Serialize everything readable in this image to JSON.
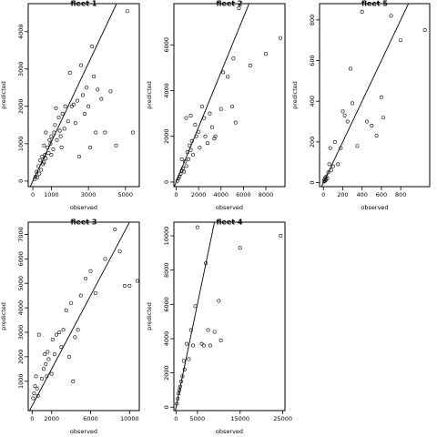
{
  "chart_data": [
    {
      "type": "scatter",
      "title": "fleet 1",
      "xlabel": "observed",
      "ylabel": "predicted",
      "xlim": [
        -250,
        5750
      ],
      "ylim": [
        -150,
        4750
      ],
      "xticks": [
        0,
        1000,
        3000,
        5000
      ],
      "yticks": [
        0,
        1000,
        2000,
        3000,
        4000
      ],
      "reference_line": {
        "slope": 1.05,
        "intercept": 0
      },
      "points": [
        [
          100,
          50
        ],
        [
          150,
          120
        ],
        [
          200,
          250
        ],
        [
          250,
          100
        ],
        [
          300,
          400
        ],
        [
          350,
          200
        ],
        [
          400,
          550
        ],
        [
          450,
          300
        ],
        [
          500,
          650
        ],
        [
          550,
          450
        ],
        [
          600,
          500
        ],
        [
          650,
          700
        ],
        [
          700,
          600
        ],
        [
          800,
          900
        ],
        [
          850,
          750
        ],
        [
          900,
          1100
        ],
        [
          950,
          1000
        ],
        [
          1000,
          1200
        ],
        [
          1100,
          850
        ],
        [
          1150,
          1300
        ],
        [
          1200,
          1500
        ],
        [
          1300,
          1100
        ],
        [
          1400,
          1700
        ],
        [
          1450,
          1350
        ],
        [
          1500,
          1200
        ],
        [
          1550,
          900
        ],
        [
          1600,
          1800
        ],
        [
          1700,
          1400
        ],
        [
          1750,
          2000
        ],
        [
          1900,
          1600
        ],
        [
          2000,
          2900
        ],
        [
          2100,
          2000
        ],
        [
          2200,
          2050
        ],
        [
          2300,
          1550
        ],
        [
          2400,
          2150
        ],
        [
          2500,
          650
        ],
        [
          2600,
          3100
        ],
        [
          2700,
          2300
        ],
        [
          2800,
          1800
        ],
        [
          2900,
          2500
        ],
        [
          3000,
          2000
        ],
        [
          3100,
          900
        ],
        [
          3200,
          3600
        ],
        [
          3300,
          2800
        ],
        [
          3400,
          1300
        ],
        [
          3500,
          2450
        ],
        [
          3700,
          2200
        ],
        [
          3900,
          1300
        ],
        [
          4200,
          2400
        ],
        [
          4500,
          950
        ],
        [
          5100,
          4550
        ],
        [
          5400,
          1300
        ],
        [
          700,
          1300
        ],
        [
          1250,
          1950
        ],
        [
          600,
          950
        ],
        [
          1000,
          700
        ]
      ]
    },
    {
      "type": "scatter",
      "title": "fleet 2",
      "xlabel": "observed",
      "ylabel": "predicted",
      "xlim": [
        -200,
        9700
      ],
      "ylim": [
        -200,
        7800
      ],
      "xticks": [
        0,
        2000,
        4000,
        6000,
        8000
      ],
      "yticks": [
        0,
        2000,
        4000,
        6000
      ],
      "reference_line": {
        "slope": 1.2,
        "intercept": 0
      },
      "points": [
        [
          100,
          50
        ],
        [
          200,
          150
        ],
        [
          300,
          250
        ],
        [
          400,
          350
        ],
        [
          500,
          500
        ],
        [
          600,
          600
        ],
        [
          700,
          450
        ],
        [
          800,
          900
        ],
        [
          900,
          700
        ],
        [
          1000,
          1300
        ],
        [
          1100,
          1000
        ],
        [
          1200,
          1600
        ],
        [
          1300,
          1400
        ],
        [
          1400,
          1800
        ],
        [
          1500,
          1200
        ],
        [
          1700,
          2500
        ],
        [
          1800,
          2000
        ],
        [
          2000,
          2200
        ],
        [
          2100,
          1500
        ],
        [
          2300,
          3300
        ],
        [
          2500,
          2800
        ],
        [
          2600,
          2000
        ],
        [
          2800,
          1700
        ],
        [
          3000,
          3000
        ],
        [
          3200,
          2400
        ],
        [
          3400,
          1900
        ],
        [
          3500,
          2000
        ],
        [
          4000,
          3200
        ],
        [
          4200,
          4800
        ],
        [
          4600,
          4600
        ],
        [
          5000,
          3300
        ],
        [
          5100,
          5400
        ],
        [
          5300,
          2600
        ],
        [
          5600,
          7600
        ],
        [
          6600,
          5100
        ],
        [
          8000,
          5600
        ],
        [
          9300,
          6300
        ],
        [
          900,
          2800
        ],
        [
          1300,
          2900
        ],
        [
          500,
          1000
        ]
      ]
    },
    {
      "type": "scatter",
      "title": "fleet 5",
      "xlabel": "observed",
      "ylabel": "predicted",
      "xlim": [
        -40,
        1100
      ],
      "ylim": [
        -20,
        880
      ],
      "xticks": [
        0,
        200,
        400,
        600,
        800
      ],
      "yticks": [
        0,
        200,
        400,
        600,
        800
      ],
      "reference_line": {
        "slope": 1.0,
        "intercept": 0
      },
      "points": [
        [
          5,
          5
        ],
        [
          10,
          15
        ],
        [
          15,
          8
        ],
        [
          20,
          25
        ],
        [
          25,
          12
        ],
        [
          30,
          30
        ],
        [
          40,
          20
        ],
        [
          50,
          50
        ],
        [
          60,
          90
        ],
        [
          70,
          170
        ],
        [
          80,
          60
        ],
        [
          100,
          80
        ],
        [
          120,
          200
        ],
        [
          150,
          90
        ],
        [
          180,
          170
        ],
        [
          200,
          350
        ],
        [
          220,
          330
        ],
        [
          250,
          300
        ],
        [
          280,
          560
        ],
        [
          300,
          390
        ],
        [
          350,
          180
        ],
        [
          400,
          840
        ],
        [
          450,
          300
        ],
        [
          500,
          280
        ],
        [
          550,
          230
        ],
        [
          600,
          420
        ],
        [
          620,
          320
        ],
        [
          700,
          820
        ],
        [
          800,
          700
        ],
        [
          1050,
          750
        ]
      ]
    },
    {
      "type": "scatter",
      "title": "fleet 3",
      "xlabel": "observed",
      "ylabel": "predicted",
      "xlim": [
        -400,
        11000
      ],
      "ylim": [
        -200,
        7500
      ],
      "xticks": [
        0,
        2000,
        6000,
        10000
      ],
      "yticks": [
        1000,
        2000,
        3000,
        4000,
        5000,
        6000,
        7000
      ],
      "reference_line": {
        "slope": 0.75,
        "intercept": 0
      },
      "points": [
        [
          100,
          300
        ],
        [
          200,
          500
        ],
        [
          300,
          800
        ],
        [
          400,
          1200
        ],
        [
          500,
          700
        ],
        [
          600,
          400
        ],
        [
          700,
          2900
        ],
        [
          1000,
          1100
        ],
        [
          1200,
          1500
        ],
        [
          1300,
          2100
        ],
        [
          1400,
          1700
        ],
        [
          1500,
          1200
        ],
        [
          1600,
          2200
        ],
        [
          1700,
          1900
        ],
        [
          2000,
          1300
        ],
        [
          2100,
          2700
        ],
        [
          2300,
          2100
        ],
        [
          2500,
          2900
        ],
        [
          2800,
          3000
        ],
        [
          3000,
          2400
        ],
        [
          3200,
          3100
        ],
        [
          3500,
          3900
        ],
        [
          3800,
          2000
        ],
        [
          4000,
          4200
        ],
        [
          4200,
          1000
        ],
        [
          4400,
          2800
        ],
        [
          4700,
          3100
        ],
        [
          5000,
          4500
        ],
        [
          5500,
          5200
        ],
        [
          6000,
          5500
        ],
        [
          6500,
          4600
        ],
        [
          7500,
          6000
        ],
        [
          8500,
          7200
        ],
        [
          9000,
          6300
        ],
        [
          9500,
          4900
        ],
        [
          10000,
          4900
        ],
        [
          10800,
          5100
        ]
      ]
    },
    {
      "type": "scatter",
      "title": "fleet 4",
      "xlabel": "observed",
      "ylabel": "predicted",
      "xlim": [
        -500,
        25500
      ],
      "ylim": [
        -200,
        10800
      ],
      "xticks": [
        0,
        5000,
        15000,
        25000
      ],
      "yticks": [
        0,
        2000,
        4000,
        6000,
        8000,
        10000
      ],
      "reference_line": {
        "slope": 1.2,
        "intercept": 0
      },
      "points": [
        [
          200,
          200
        ],
        [
          400,
          500
        ],
        [
          600,
          800
        ],
        [
          800,
          1000
        ],
        [
          1000,
          1200
        ],
        [
          1200,
          1500
        ],
        [
          1500,
          1800
        ],
        [
          1800,
          2700
        ],
        [
          2000,
          2200
        ],
        [
          2500,
          3700
        ],
        [
          3000,
          2800
        ],
        [
          3500,
          4500
        ],
        [
          4000,
          3600
        ],
        [
          4500,
          5900
        ],
        [
          5000,
          10500
        ],
        [
          6000,
          3700
        ],
        [
          6500,
          3600
        ],
        [
          7000,
          8400
        ],
        [
          7500,
          4500
        ],
        [
          8000,
          3600
        ],
        [
          9000,
          4400
        ],
        [
          10000,
          6200
        ],
        [
          10500,
          3900
        ],
        [
          15000,
          9300
        ],
        [
          24500,
          10000
        ]
      ]
    }
  ]
}
